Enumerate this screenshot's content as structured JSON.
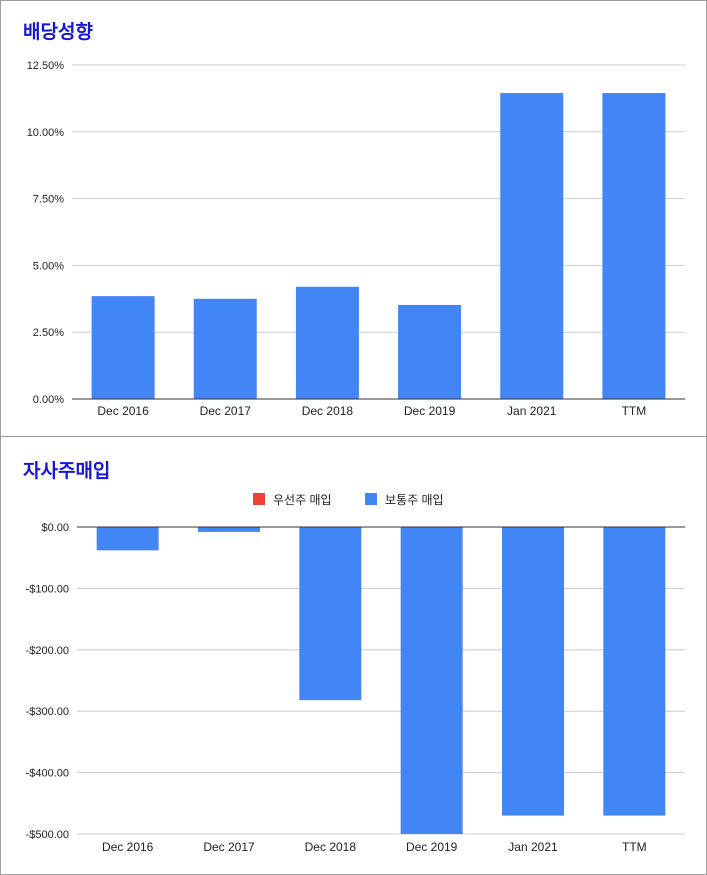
{
  "charts": [
    {
      "title": "배당성향",
      "chart_data": {
        "type": "bar",
        "title": "배당성향",
        "categories": [
          "Dec 2016",
          "Dec 2017",
          "Dec 2018",
          "Dec 2019",
          "Jan 2021",
          "TTM"
        ],
        "series": [
          {
            "values": [
              3.85,
              3.75,
              4.2,
              3.52,
              11.45,
              11.45
            ],
            "color": "#4285f4"
          }
        ],
        "yticks": [
          0,
          2.5,
          5,
          7.5,
          10,
          12.5
        ],
        "ytick_labels": [
          "0.00%",
          "2.50%",
          "5.00%",
          "7.50%",
          "10.00%",
          "12.50%"
        ],
        "ylim": [
          0,
          12.5
        ],
        "grid": true,
        "legend": "none"
      }
    },
    {
      "title": "자사주매입",
      "chart_data": {
        "type": "bar",
        "title": "자사주매입",
        "categories": [
          "Dec 2016",
          "Dec 2017",
          "Dec 2018",
          "Dec 2019",
          "Jan 2021",
          "TTM"
        ],
        "series": [
          {
            "name": "우선주 매입",
            "values": [
              0,
              0,
              0,
              0,
              0,
              0
            ],
            "color": "#ea4335"
          },
          {
            "name": "보통주 매입",
            "values": [
              -38,
              -8,
              -282,
              -500,
              -470,
              -470
            ],
            "color": "#4285f4"
          }
        ],
        "yticks": [
          0,
          -100,
          -200,
          -300,
          -400,
          -500
        ],
        "ytick_labels": [
          "$0.00",
          "-$100.00",
          "-$200.00",
          "-$300.00",
          "-$400.00",
          "-$500.00"
        ],
        "ylim": [
          -500,
          0
        ],
        "grid": true,
        "legend": "top-center"
      }
    }
  ]
}
